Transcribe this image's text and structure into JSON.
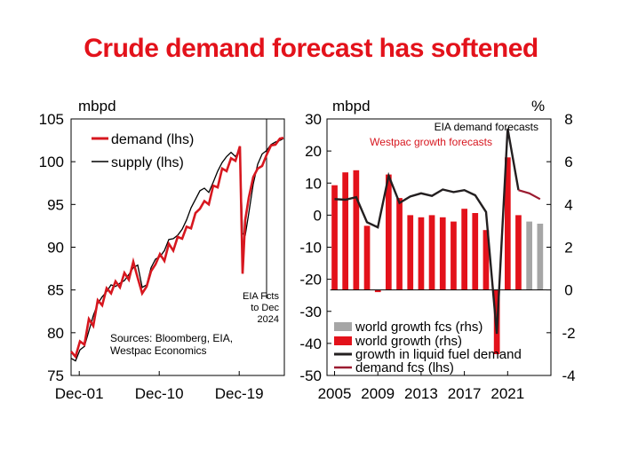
{
  "title": "Crude demand forecast has softened",
  "colors": {
    "title": "#e3121b",
    "demand": "#d7171f",
    "supply": "#000000",
    "world_growth": "#e3121b",
    "world_growth_fcs": "#a6a6a6",
    "growth_line": "#231f20",
    "demand_fcs": "#9b1b30"
  },
  "chart_data": [
    {
      "type": "line",
      "ylabel": "mbpd",
      "ylim": [
        75,
        105
      ],
      "yticks": [
        "75",
        "80",
        "85",
        "90",
        "95",
        "100",
        "105"
      ],
      "xticks": [
        "Dec-01",
        "Dec-10",
        "Dec-19"
      ],
      "xlim": [
        2001,
        2025
      ],
      "xtick_positions": [
        2001.92,
        2010.92,
        2019.92
      ],
      "legend": [
        "demand (lhs)",
        "supply (lhs)"
      ],
      "source": "Sources: Bloomberg, EIA,",
      "source2": "Westpac Economics",
      "annotation": [
        "EIA Fcts",
        "to Dec",
        "2024"
      ],
      "forecast_start": 2023.0,
      "series": [
        {
          "name": "demand (lhs)",
          "x": [
            2001.0,
            2001.5,
            2002.0,
            2002.5,
            2003.0,
            2003.5,
            2004.0,
            2004.5,
            2005.0,
            2005.5,
            2006.0,
            2006.5,
            2007.0,
            2007.5,
            2008.0,
            2008.5,
            2009.0,
            2009.5,
            2010.0,
            2010.5,
            2011.0,
            2011.5,
            2012.0,
            2012.5,
            2013.0,
            2013.5,
            2014.0,
            2014.5,
            2015.0,
            2015.5,
            2016.0,
            2016.5,
            2017.0,
            2017.5,
            2018.0,
            2018.5,
            2019.0,
            2019.5,
            2020.0,
            2020.3,
            2020.6,
            2021.0,
            2021.5,
            2022.0,
            2022.5,
            2023.0,
            2023.5,
            2024.0,
            2024.5,
            2024.9
          ],
          "y": [
            77.8,
            77.2,
            79.0,
            78.6,
            81.6,
            80.8,
            83.8,
            83.2,
            85.2,
            84.6,
            86.0,
            85.3,
            87.0,
            86.2,
            88.3,
            86.4,
            84.6,
            85.4,
            87.2,
            88.0,
            89.2,
            88.4,
            90.4,
            89.6,
            91.2,
            91.0,
            92.4,
            92.2,
            94.0,
            94.5,
            95.4,
            95.0,
            97.2,
            97.0,
            99.2,
            98.9,
            100.4,
            100.1,
            101.8,
            86.9,
            93.2,
            95.8,
            98.2,
            99.2,
            99.5,
            100.8,
            101.9,
            102.0,
            102.7,
            102.8
          ]
        },
        {
          "name": "supply (lhs)",
          "x": [
            2001.0,
            2001.5,
            2002.0,
            2002.5,
            2003.0,
            2003.5,
            2004.0,
            2004.5,
            2005.0,
            2005.5,
            2006.0,
            2006.5,
            2007.0,
            2007.5,
            2008.0,
            2008.5,
            2009.0,
            2009.5,
            2010.0,
            2010.5,
            2011.0,
            2011.5,
            2012.0,
            2012.5,
            2013.0,
            2013.5,
            2014.0,
            2014.5,
            2015.0,
            2015.5,
            2016.0,
            2016.5,
            2017.0,
            2017.5,
            2018.0,
            2018.5,
            2019.0,
            2019.5,
            2020.0,
            2020.3,
            2020.6,
            2021.0,
            2021.5,
            2022.0,
            2022.5,
            2023.0,
            2023.5,
            2024.0,
            2024.5,
            2024.9
          ],
          "y": [
            77.0,
            76.7,
            78.0,
            78.4,
            80.2,
            82.0,
            83.4,
            84.2,
            84.8,
            85.6,
            85.4,
            85.8,
            86.1,
            86.8,
            87.6,
            87.9,
            85.3,
            85.6,
            87.6,
            88.6,
            88.9,
            89.6,
            90.9,
            91.0,
            91.4,
            92.1,
            93.2,
            94.6,
            95.6,
            96.6,
            96.9,
            96.4,
            97.6,
            98.9,
            99.9,
            100.6,
            101.1,
            100.6,
            101.4,
            91.6,
            91.4,
            94.0,
            97.4,
            99.7,
            100.9,
            101.3,
            102.0,
            102.3,
            102.5,
            102.7
          ]
        }
      ]
    },
    {
      "type": "bar",
      "ylabel_left": "mbpd",
      "ylabel_right": "%",
      "ylim_left": [
        -50,
        30
      ],
      "ylim_right": [
        -4,
        8
      ],
      "yticks_left": [
        "-50",
        "-40",
        "-30",
        "-20",
        "-10",
        "0",
        "10",
        "20",
        "30"
      ],
      "yticks_right": [
        "-4",
        "-2",
        "0",
        "2",
        "4",
        "6",
        "8"
      ],
      "xticks": [
        "2005",
        "2009",
        "2013",
        "2017",
        "2021"
      ],
      "annotations": [
        "EIA demand forecasts",
        "Westpac growth forecasts"
      ],
      "legend": [
        "world growth fcs (rhs)",
        "world growth (rhs)",
        "growth in liquid fuel demand",
        "demand fcs (lhs)"
      ],
      "categories": [
        "2005",
        "2006",
        "2007",
        "2008",
        "2009",
        "2010",
        "2011",
        "2012",
        "2013",
        "2014",
        "2015",
        "2016",
        "2017",
        "2018",
        "2019",
        "2020",
        "2021",
        "2022",
        "2023",
        "2024"
      ],
      "series": [
        {
          "name": "world growth (rhs)",
          "x": [
            2005,
            2006,
            2007,
            2008,
            2009,
            2010,
            2011,
            2012,
            2013,
            2014,
            2015,
            2016,
            2017,
            2018,
            2019,
            2020,
            2021,
            2022
          ],
          "values": [
            4.9,
            5.5,
            5.6,
            3.0,
            -0.1,
            5.4,
            4.3,
            3.5,
            3.4,
            3.5,
            3.4,
            3.2,
            3.8,
            3.6,
            2.8,
            -3.0,
            6.2,
            3.5
          ]
        },
        {
          "name": "world growth fcs (rhs)",
          "x": [
            2023,
            2024
          ],
          "values": [
            3.2,
            3.1
          ]
        },
        {
          "name": "growth in liquid fuel demand",
          "x": [
            2005,
            2006,
            2007,
            2008,
            2009,
            2010,
            2011,
            2012,
            2013,
            2014,
            2015,
            2016,
            2017,
            2018,
            2019,
            2020,
            2021,
            2022
          ],
          "values": [
            5.0,
            4.8,
            5.6,
            -2.2,
            -3.8,
            12.3,
            3.8,
            5.8,
            6.8,
            6.0,
            8.0,
            7.2,
            7.8,
            6.2,
            1.0,
            -37.0,
            27.0,
            7.8
          ]
        },
        {
          "name": "demand fcs (lhs)",
          "x": [
            2022,
            2023,
            2024
          ],
          "values": [
            7.8,
            6.8,
            5.0
          ]
        }
      ]
    }
  ]
}
